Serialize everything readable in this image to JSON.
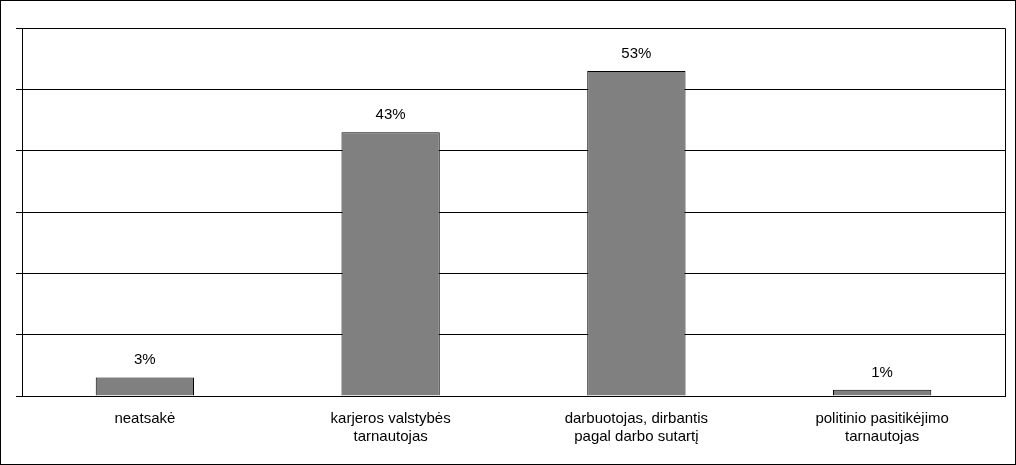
{
  "chart_data": {
    "type": "bar",
    "categories": [
      "neatsakė",
      "karjeros valstybės tarnautojas",
      "darbuotojas, dirbantis pagal darbo sutartį",
      "politinio pasitikėjimo tarnautojas"
    ],
    "values": [
      3,
      43,
      53,
      1
    ],
    "color": "#808080",
    "data_labels": true,
    "value_labels": [
      "3%",
      "43%",
      "53%",
      "1%"
    ],
    "ylim": [
      0,
      60
    ],
    "yticks": [
      {
        "value": 0,
        "label": null
      },
      {
        "value": 10,
        "label": null
      },
      {
        "value": 20,
        "label": null
      },
      {
        "value": 30,
        "label": null
      },
      {
        "value": 40,
        "label": null
      },
      {
        "value": 50,
        "label": null
      },
      {
        "value": 60,
        "label": null
      }
    ],
    "grid": "y",
    "tick_labels": "x",
    "legend": false
  }
}
